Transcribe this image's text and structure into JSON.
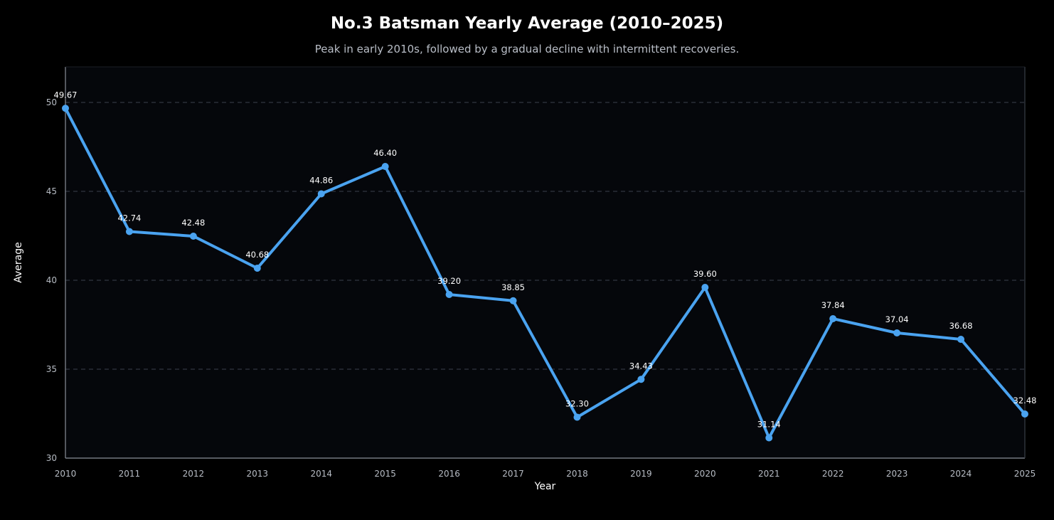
{
  "chart_data": {
    "type": "line",
    "title": "No.3 Batsman Yearly Average (2010–2025)",
    "subtitle": "Peak in early 2010s, followed by a gradual decline with intermittent recoveries.",
    "xlabel": "Year",
    "ylabel": "Average",
    "x": [
      "2010",
      "2011",
      "2012",
      "2013",
      "2014",
      "2015",
      "2016",
      "2017",
      "2018",
      "2019",
      "2020",
      "2021",
      "2022",
      "2023",
      "2024",
      "2025"
    ],
    "values": [
      49.67,
      42.74,
      42.48,
      40.68,
      44.86,
      46.4,
      39.2,
      38.85,
      32.3,
      34.43,
      39.6,
      31.14,
      37.84,
      37.04,
      36.68,
      32.48
    ],
    "data_labels": [
      "49.67",
      "42.74",
      "42.48",
      "40.68",
      "44.86",
      "46.40",
      "39.20",
      "38.85",
      "32.30",
      "34.43",
      "39.60",
      "31.14",
      "37.84",
      "37.04",
      "36.68",
      "32.48"
    ],
    "ylim": [
      30,
      52
    ],
    "yticks": [
      30,
      35,
      40,
      45,
      50
    ],
    "grid": "horizontal-dashed",
    "legend": "none",
    "colors": {
      "background": "#000000",
      "plot_background": "#05070b",
      "line": "#4aa3f0",
      "grid": "#2a2f38",
      "axis": "#8a9099"
    }
  }
}
